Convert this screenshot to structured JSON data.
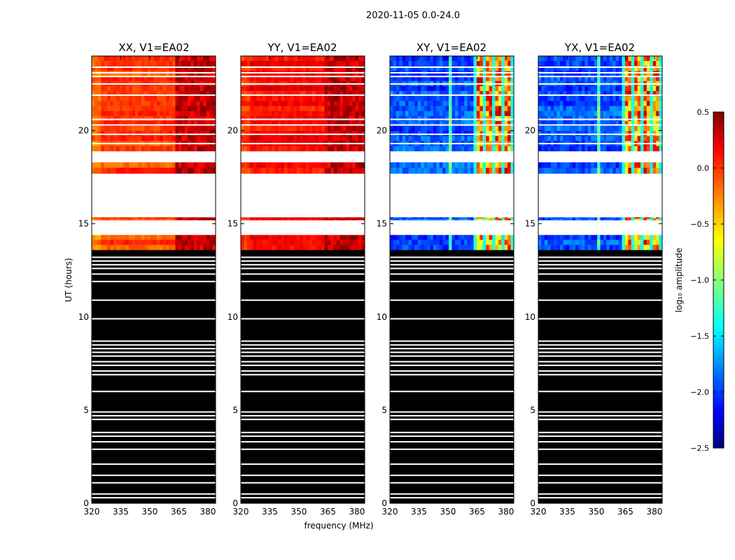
{
  "chart_data": {
    "type": "heatmap",
    "suptitle": "2020-11-05 0.0-24.0",
    "xlabel": "frequency (MHz)",
    "ylabel": "UT (hours)",
    "xlim": [
      320,
      384
    ],
    "ylim": [
      0,
      24
    ],
    "xticks": [
      320,
      335,
      350,
      365,
      380
    ],
    "yticks": [
      0,
      5,
      10,
      15,
      20
    ],
    "panels": [
      {
        "title": "XX, V1=EA02",
        "kind": "parallel"
      },
      {
        "title": "YY, V1=EA02",
        "kind": "parallel_strong"
      },
      {
        "title": "XY, V1=EA02",
        "kind": "cross"
      },
      {
        "title": "YX, V1=EA02",
        "kind": "cross"
      }
    ],
    "colorbar": {
      "label": "log₁₀ amplitude",
      "range": [
        -2.5,
        0.5
      ],
      "ticks": [
        "0.5",
        "0.0",
        "−0.5",
        "−1.0",
        "−1.5",
        "−2.0",
        "−2.5"
      ],
      "colormap": "jet"
    },
    "time_blocks": [
      {
        "from": 0.0,
        "to": 13.6,
        "state": "zero"
      },
      {
        "from": 13.6,
        "to": 14.4,
        "state": "data"
      },
      {
        "from": 14.4,
        "to": 15.2,
        "state": "blank"
      },
      {
        "from": 15.2,
        "to": 15.35,
        "state": "data"
      },
      {
        "from": 15.35,
        "to": 17.7,
        "state": "blank"
      },
      {
        "from": 17.7,
        "to": 18.3,
        "state": "data"
      },
      {
        "from": 18.3,
        "to": 18.9,
        "state": "blank"
      },
      {
        "from": 18.9,
        "to": 24.0,
        "state": "data"
      }
    ],
    "zero_gaps": [
      0.3,
      0.5,
      1.1,
      1.5,
      2.1,
      2.9,
      3.3,
      3.6,
      3.8,
      4.5,
      4.7,
      4.9,
      6.0,
      6.9,
      7.1,
      7.4,
      7.6,
      7.9,
      8.1,
      8.3,
      8.5,
      8.7,
      9.9,
      10.9,
      11.9,
      12.3,
      12.6,
      12.8,
      13.0,
      13.2
    ],
    "data_gaps": [
      19.3,
      19.8,
      20.3,
      20.6,
      21.9,
      22.5,
      22.9,
      23.1,
      23.4
    ]
  }
}
